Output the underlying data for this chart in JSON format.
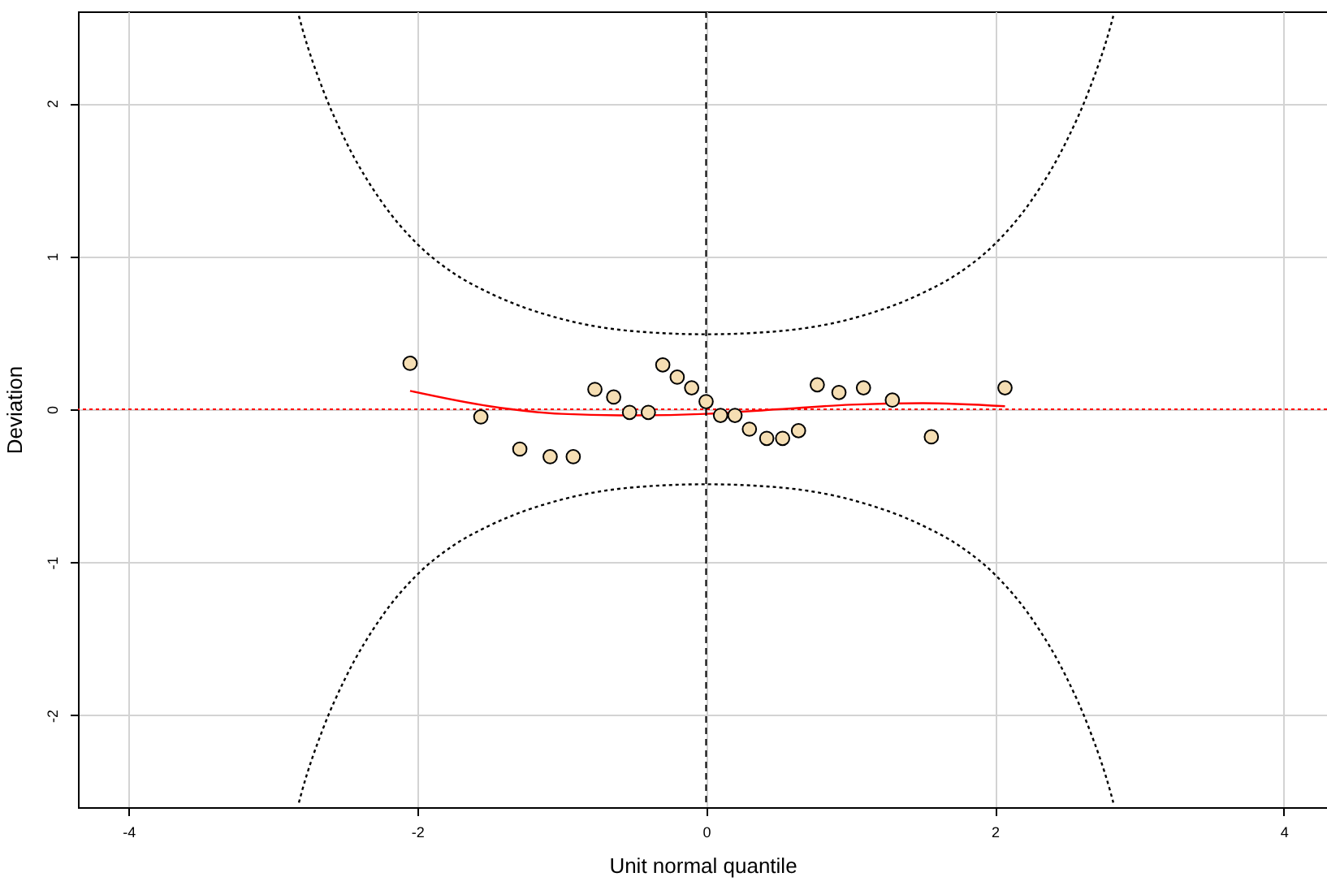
{
  "chart_data": {
    "type": "scatter",
    "xlabel": "Unit normal quantile",
    "ylabel": "Deviation",
    "xlim": [
      -4.35,
      4.3
    ],
    "ylim": [
      -2.6,
      2.6
    ],
    "xticks": [
      -4,
      -2,
      0,
      2,
      4
    ],
    "yticks": [
      -2,
      -1,
      0,
      1,
      2
    ],
    "grid": true,
    "series": [
      {
        "color": "#f5deb3",
        "marker": "circle",
        "x": [
          -2.05,
          -1.56,
          -1.29,
          -1.08,
          -0.92,
          -0.77,
          -0.64,
          -0.53,
          -0.4,
          -0.3,
          -0.2,
          -0.1,
          0,
          0.1,
          0.2,
          0.3,
          0.42,
          0.53,
          0.64,
          0.77,
          0.92,
          1.09,
          1.29,
          1.56,
          2.07
        ],
        "values": [
          0.3,
          -0.05,
          -0.26,
          -0.31,
          -0.31,
          0.13,
          0.08,
          -0.02,
          -0.02,
          0.29,
          0.21,
          0.14,
          0.05,
          -0.04,
          -0.04,
          -0.13,
          -0.19,
          -0.19,
          -0.14,
          0.16,
          0.11,
          0.14,
          0.06,
          -0.18,
          0.14
        ]
      },
      {
        "type": "line",
        "color": "#ff0000",
        "line_style": "solid",
        "x": [
          -2.05,
          -1.5,
          -1,
          -0.5,
          0,
          0.5,
          1,
          1.5,
          2.07
        ],
        "values": [
          0.12,
          0.02,
          -0.03,
          -0.04,
          -0.03,
          0,
          0.03,
          0.04,
          0.02
        ]
      },
      {
        "type": "line",
        "color": "#000000",
        "line_style": "dotted",
        "x": [
          -2.82,
          -2.8,
          -2.65,
          -2.5,
          -2.25,
          -2,
          -1.75,
          -1.5,
          -1,
          -0.5,
          0,
          0.5,
          1,
          1.5,
          1.75,
          2,
          2.25,
          2.5,
          2.65,
          2.8,
          2.82
        ],
        "values": [
          2.57,
          2.5,
          2.08,
          1.76,
          1.36,
          1.08,
          0.89,
          0.76,
          0.59,
          0.51,
          0.49,
          0.51,
          0.59,
          0.76,
          0.89,
          1.08,
          1.36,
          1.76,
          2.08,
          2.5,
          2.57
        ]
      },
      {
        "type": "line",
        "color": "#000000",
        "line_style": "dotted",
        "x": [
          -2.82,
          -2.8,
          -2.65,
          -2.5,
          -2.25,
          -2,
          -1.75,
          -1.5,
          -1,
          -0.5,
          0,
          0.5,
          1,
          1.5,
          1.75,
          2,
          2.25,
          2.5,
          2.65,
          2.8,
          2.82
        ],
        "values": [
          -2.57,
          -2.5,
          -2.08,
          -1.76,
          -1.36,
          -1.08,
          -0.89,
          -0.76,
          -0.59,
          -0.51,
          -0.49,
          -0.51,
          -0.59,
          -0.76,
          -0.89,
          -1.08,
          -1.36,
          -1.76,
          -2.08,
          -2.5,
          -2.57
        ]
      }
    ],
    "ref_lines": [
      {
        "axis": "y",
        "value": 0,
        "color": "#ff0000",
        "line_style": "dotted"
      },
      {
        "axis": "x",
        "value": 0,
        "color": "#000000",
        "line_style": "dashed"
      }
    ]
  }
}
